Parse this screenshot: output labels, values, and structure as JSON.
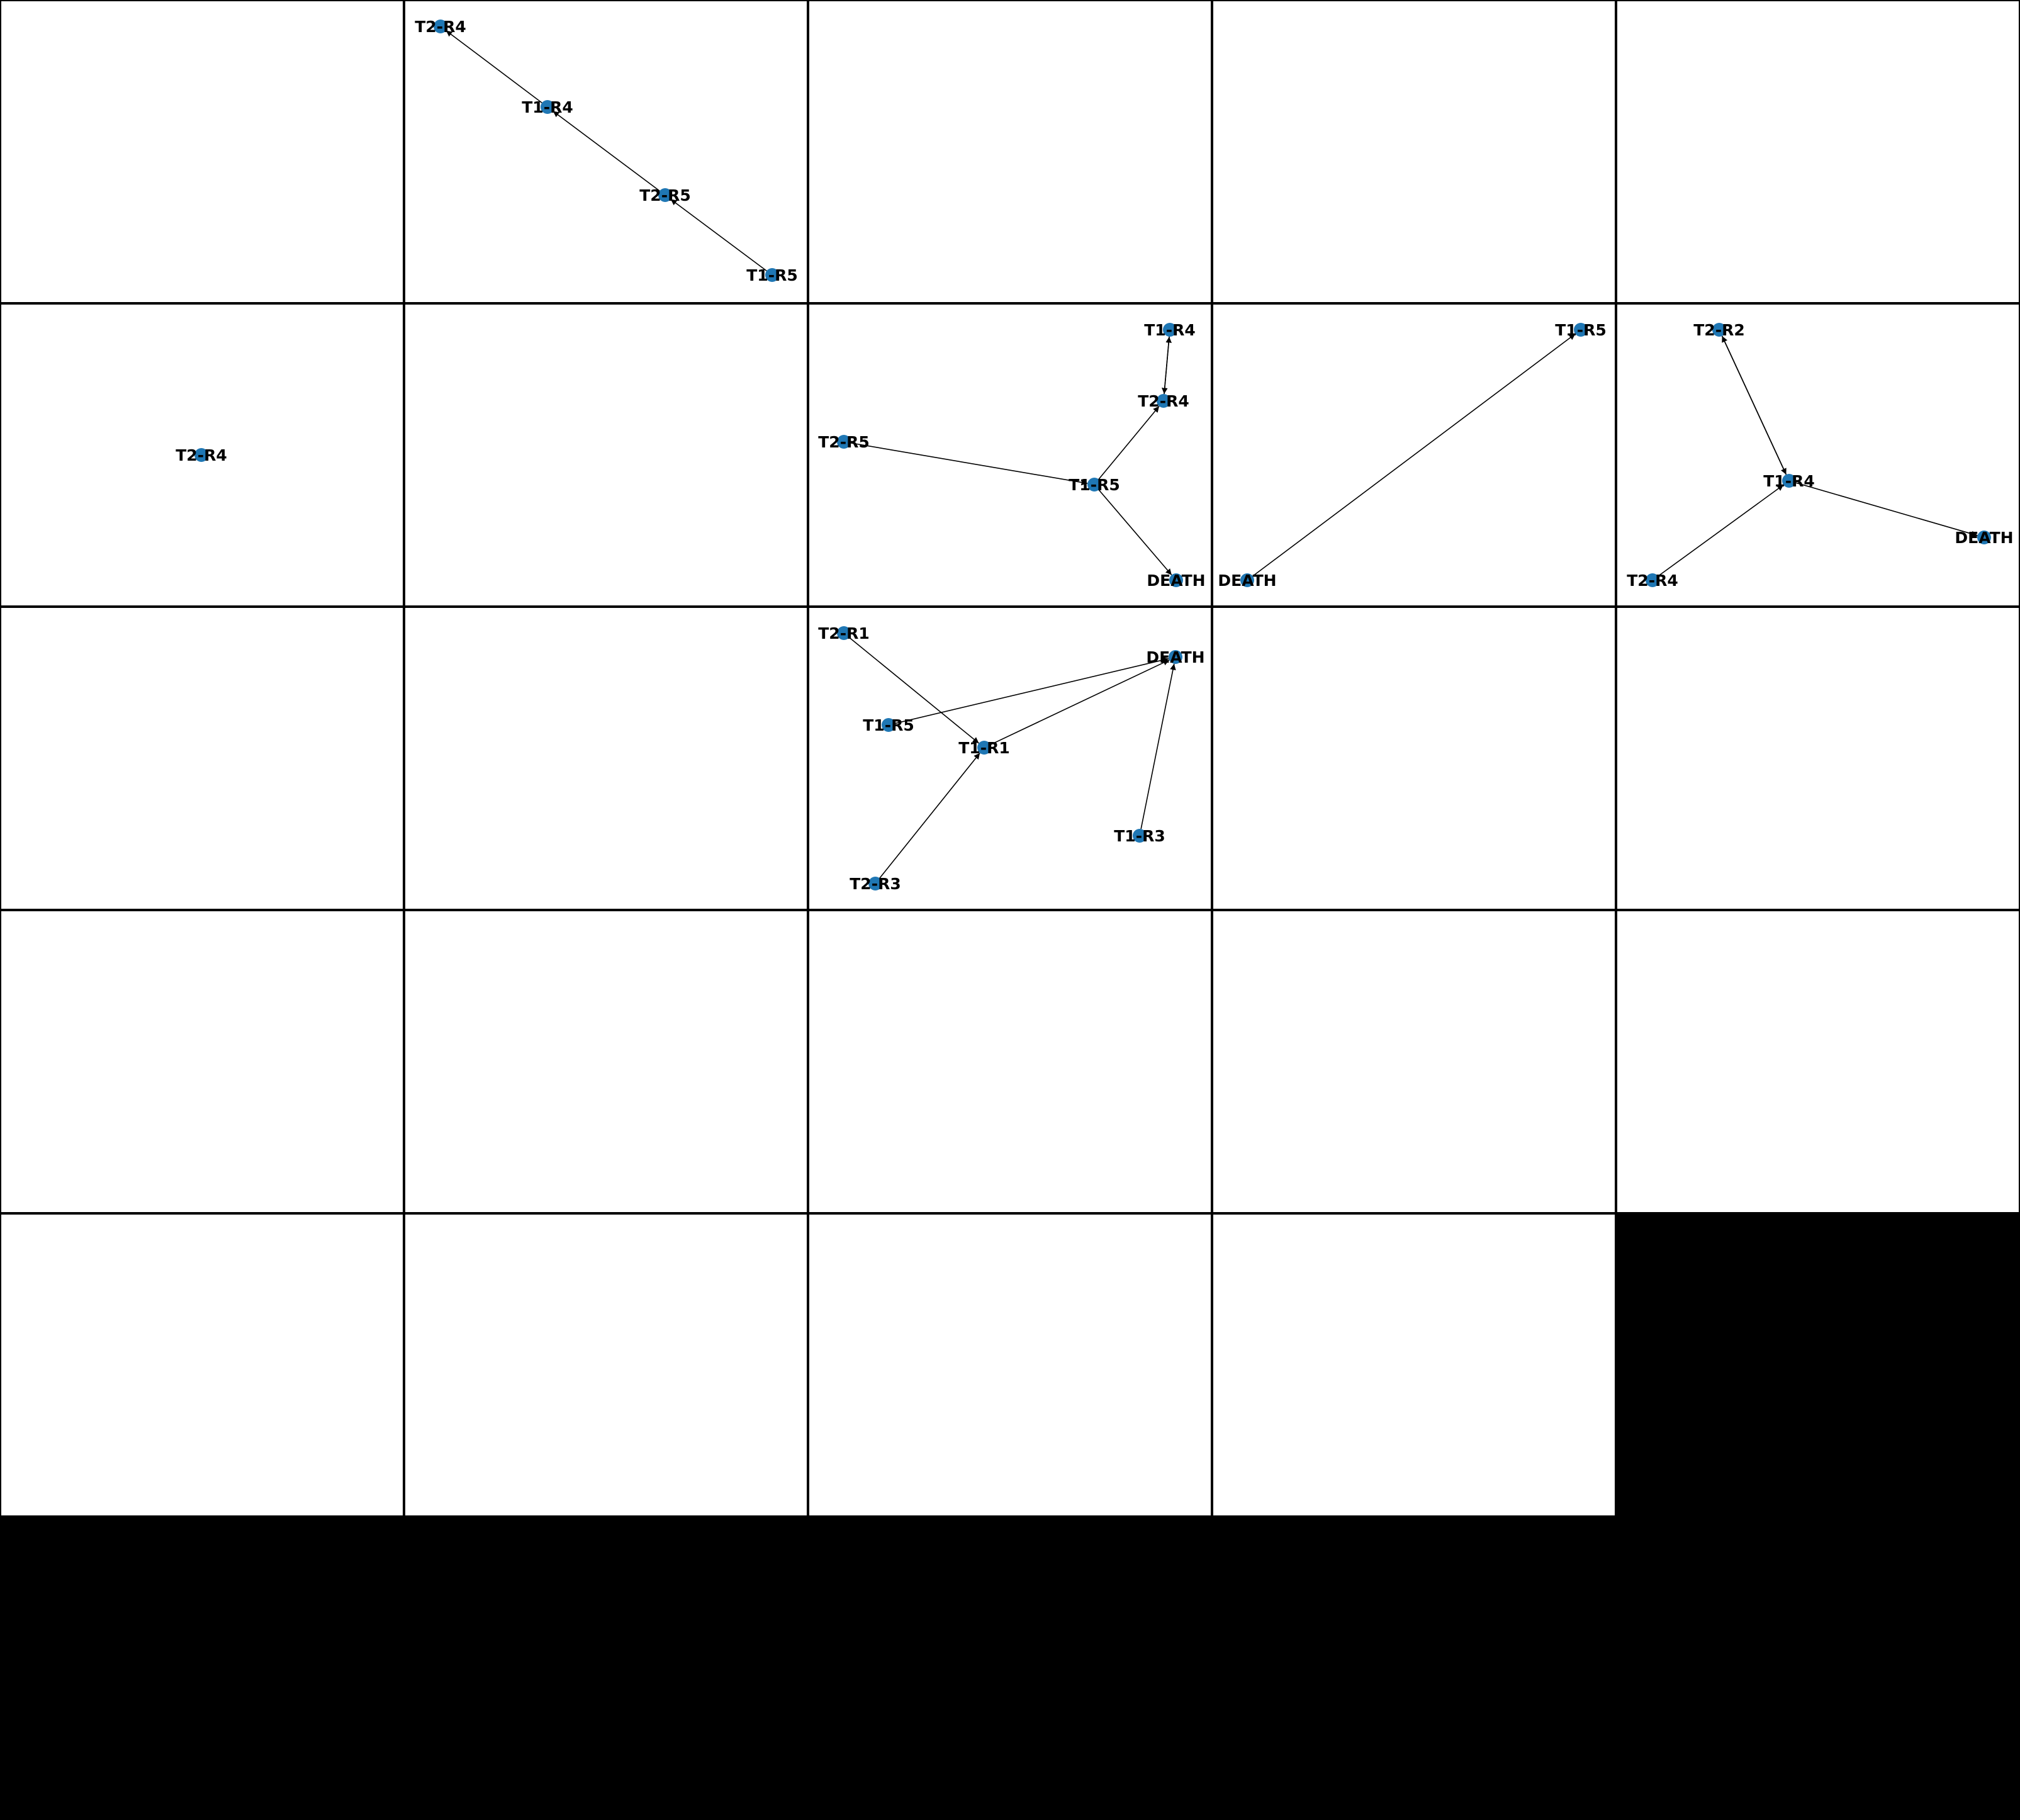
{
  "figure": {
    "rows": 5,
    "cols": 5,
    "background": "#000000",
    "panel_background": "#ffffff",
    "node_color": "#1f77b4",
    "edge_color": "#000000"
  },
  "panels": [
    {
      "row": 0,
      "col": 1,
      "nodes": [
        {
          "id": "T2-R4",
          "label": "T2-R4"
        },
        {
          "id": "T1-R4",
          "label": "T1-R4"
        },
        {
          "id": "T2-R5",
          "label": "T2-R5"
        },
        {
          "id": "T1-R5",
          "label": "T1-R5"
        }
      ],
      "edges": [
        {
          "from": "T1-R4",
          "to": "T2-R4"
        },
        {
          "from": "T2-R5",
          "to": "T1-R4"
        },
        {
          "from": "T1-R5",
          "to": "T2-R5"
        }
      ]
    },
    {
      "row": 1,
      "col": 0,
      "nodes": [
        {
          "id": "T2-R4",
          "label": "T2-R4"
        }
      ],
      "edges": []
    },
    {
      "row": 1,
      "col": 2,
      "nodes": [
        {
          "id": "T1-R4",
          "label": "T1-R4"
        },
        {
          "id": "T2-R4",
          "label": "T2-R4"
        },
        {
          "id": "T2-R5",
          "label": "T2-R5"
        },
        {
          "id": "T1-R5",
          "label": "T1-R5"
        },
        {
          "id": "DEATH",
          "label": "DEATH"
        }
      ],
      "edges": [
        {
          "from": "T2-R4",
          "to": "T1-R4"
        },
        {
          "from": "T1-R4",
          "to": "T2-R4"
        },
        {
          "from": "T1-R5",
          "to": "T2-R4"
        },
        {
          "from": "T2-R5",
          "to": "T1-R5"
        },
        {
          "from": "T1-R5",
          "to": "DEATH"
        }
      ]
    },
    {
      "row": 1,
      "col": 3,
      "nodes": [
        {
          "id": "T1-R5",
          "label": "T1-R5"
        },
        {
          "id": "DEATH",
          "label": "DEATH"
        }
      ],
      "edges": [
        {
          "from": "DEATH",
          "to": "T1-R5"
        }
      ]
    },
    {
      "row": 1,
      "col": 4,
      "nodes": [
        {
          "id": "T2-R2",
          "label": "T2-R2"
        },
        {
          "id": "T1-R4",
          "label": "T1-R4"
        },
        {
          "id": "DEATH",
          "label": "DEATH"
        },
        {
          "id": "T2-R4",
          "label": "T2-R4"
        }
      ],
      "edges": [
        {
          "from": "T1-R4",
          "to": "T2-R2"
        },
        {
          "from": "T2-R2",
          "to": "T1-R4"
        },
        {
          "from": "T2-R4",
          "to": "T1-R4"
        },
        {
          "from": "T1-R4",
          "to": "DEATH"
        }
      ]
    },
    {
      "row": 2,
      "col": 2,
      "nodes": [
        {
          "id": "T2-R1",
          "label": "T2-R1"
        },
        {
          "id": "DEATH",
          "label": "DEATH"
        },
        {
          "id": "T1-R5",
          "label": "T1-R5"
        },
        {
          "id": "T1-R1",
          "label": "T1-R1"
        },
        {
          "id": "T1-R3",
          "label": "T1-R3"
        },
        {
          "id": "T2-R3",
          "label": "T2-R3"
        }
      ],
      "edges": [
        {
          "from": "T2-R1",
          "to": "T1-R1"
        },
        {
          "from": "T1-R5",
          "to": "DEATH"
        },
        {
          "from": "T1-R1",
          "to": "DEATH"
        },
        {
          "from": "T1-R3",
          "to": "DEATH"
        },
        {
          "from": "T2-R3",
          "to": "T1-R1"
        }
      ]
    }
  ]
}
